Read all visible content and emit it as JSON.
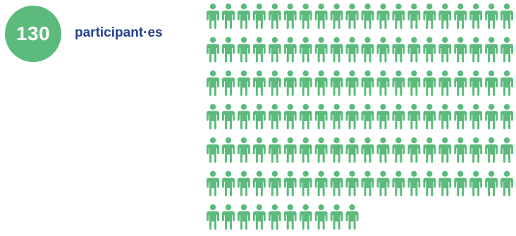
{
  "summary": {
    "count": "130",
    "label": "participant·es"
  },
  "colors": {
    "accent": "#5cbb7c",
    "label": "#253f8f"
  },
  "icon": "person-icon",
  "chart_data": {
    "type": "pictogram",
    "total": 130,
    "columns": 20,
    "units_per_icon": 1,
    "rows": [
      20,
      20,
      20,
      20,
      20,
      20,
      10
    ]
  }
}
